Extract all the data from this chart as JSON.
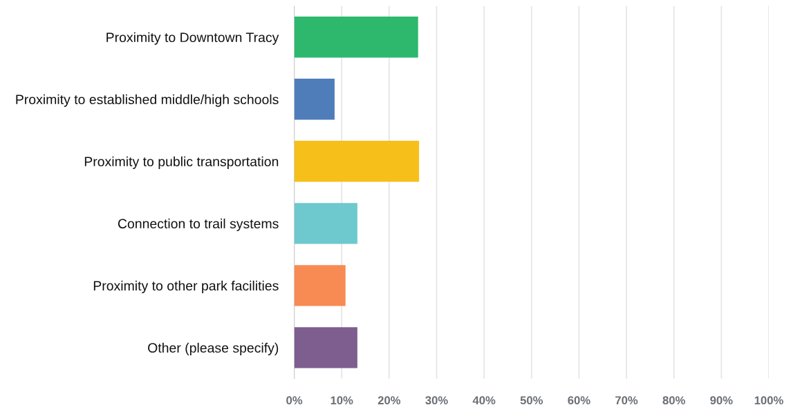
{
  "chart_data": {
    "type": "bar",
    "orientation": "horizontal",
    "categories": [
      "Proximity to Downtown Tracy",
      "Proximity to established middle/high schools",
      "Proximity to public transportation",
      "Connection to trail systems",
      "Proximity to other park facilities",
      "Other (please specify)"
    ],
    "values": [
      26.1,
      8.5,
      26.3,
      13.3,
      10.8,
      13.3
    ],
    "colors": [
      "#2db86e",
      "#4f7dba",
      "#f6bf1a",
      "#6dc9cd",
      "#f78b53",
      "#7d5e8f"
    ],
    "xlim": [
      0,
      100
    ],
    "xticks": [
      {
        "value": 0,
        "label": "0%"
      },
      {
        "value": 10,
        "label": "10%"
      },
      {
        "value": 20,
        "label": "20%"
      },
      {
        "value": 30,
        "label": "30%"
      },
      {
        "value": 40,
        "label": "40%"
      },
      {
        "value": 50,
        "label": "50%"
      },
      {
        "value": 60,
        "label": "60%"
      },
      {
        "value": 70,
        "label": "70%"
      },
      {
        "value": 80,
        "label": "80%"
      },
      {
        "value": 90,
        "label": "90%"
      },
      {
        "value": 100,
        "label": "100%"
      }
    ],
    "grid": "x"
  }
}
